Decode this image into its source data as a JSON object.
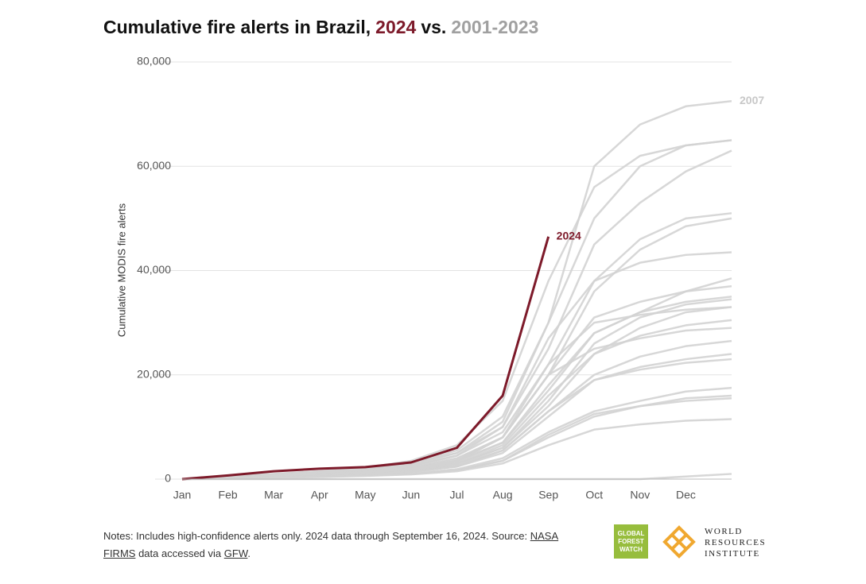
{
  "chart_data": {
    "type": "line",
    "title": {
      "text": "Cumulative fire alerts in Brazil,",
      "highlight": "2024",
      "connector": "vs.",
      "comparison": "2001-2023"
    },
    "y_label": "Cumulative MODIS fire alerts",
    "categories": [
      "Jan",
      "Feb",
      "Mar",
      "Apr",
      "May",
      "Jun",
      "Jul",
      "Aug",
      "Sep",
      "Oct",
      "Nov",
      "Dec",
      null
    ],
    "ylim": [
      0,
      80000
    ],
    "yticks": [
      0,
      {
        "value": 20000,
        "label": "20,000"
      },
      {
        "value": 40000,
        "label": "40,000"
      },
      {
        "value": 60000,
        "label": "60,000"
      },
      {
        "value": 80000,
        "label": "80,000"
      }
    ],
    "grid": true,
    "series": [
      {
        "name": "2007",
        "color": "#d3d3d3",
        "values": [
          0,
          400,
          900,
          1400,
          1900,
          2800,
          5000,
          11000,
          30000,
          60000,
          68000,
          71500,
          72500
        ]
      },
      {
        "color": "#d3d3d3",
        "values": [
          0,
          500,
          1000,
          1500,
          2200,
          3500,
          6500,
          15000,
          38000,
          56000,
          62000,
          64000,
          65000
        ]
      },
      {
        "color": "#d3d3d3",
        "values": [
          0,
          400,
          800,
          1300,
          1900,
          3000,
          5500,
          12000,
          30000,
          50000,
          60000,
          64000,
          65000
        ]
      },
      {
        "color": "#d3d3d3",
        "values": [
          0,
          500,
          1000,
          1500,
          2000,
          3000,
          5000,
          10000,
          25000,
          45000,
          53000,
          59000,
          63000
        ]
      },
      {
        "color": "#d3d3d3",
        "values": [
          0,
          300,
          700,
          1100,
          1600,
          2500,
          4500,
          9000,
          22000,
          38000,
          46000,
          50000,
          51000
        ]
      },
      {
        "color": "#d3d3d3",
        "values": [
          0,
          300,
          600,
          1000,
          1500,
          2300,
          4000,
          8000,
          20000,
          36000,
          44000,
          48500,
          50000
        ]
      },
      {
        "color": "#d3d3d3",
        "values": [
          0,
          400,
          800,
          1200,
          1700,
          2600,
          4500,
          10000,
          27000,
          38000,
          41500,
          43000,
          43500
        ]
      },
      {
        "color": "#d3d3d3",
        "values": [
          0,
          300,
          600,
          900,
          1300,
          2000,
          3500,
          7000,
          17000,
          28000,
          32000,
          36000,
          38500
        ]
      },
      {
        "color": "#d3d3d3",
        "values": [
          0,
          300,
          600,
          1000,
          1400,
          2200,
          3800,
          8000,
          20000,
          31000,
          34000,
          36000,
          37000
        ]
      },
      {
        "color": "#d3d3d3",
        "values": [
          0,
          300,
          600,
          900,
          1300,
          2000,
          3300,
          7000,
          18000,
          28000,
          32000,
          34000,
          35000
        ]
      },
      {
        "color": "#d3d3d3",
        "values": [
          0,
          300,
          500,
          800,
          1200,
          1800,
          3000,
          6000,
          15000,
          26000,
          31000,
          33500,
          34500
        ]
      },
      {
        "color": "#d3d3d3",
        "values": [
          0,
          300,
          600,
          900,
          1300,
          2000,
          3500,
          8000,
          22000,
          30000,
          31500,
          32500,
          33000
        ]
      },
      {
        "color": "#d3d3d3",
        "values": [
          0,
          200,
          400,
          700,
          1000,
          1600,
          2800,
          6000,
          14000,
          24000,
          29000,
          32000,
          33000
        ]
      },
      {
        "color": "#d3d3d3",
        "values": [
          0,
          200,
          500,
          800,
          1100,
          1700,
          3000,
          6500,
          16000,
          24000,
          27500,
          29500,
          30500
        ]
      },
      {
        "color": "#d3d3d3",
        "values": [
          0,
          300,
          600,
          900,
          1300,
          2000,
          3400,
          8000,
          20000,
          25000,
          27000,
          28500,
          29000
        ]
      },
      {
        "color": "#d3d3d3",
        "values": [
          0,
          200,
          400,
          700,
          1000,
          1500,
          2600,
          5500,
          13000,
          20000,
          23500,
          25500,
          26500
        ]
      },
      {
        "color": "#d3d3d3",
        "values": [
          0,
          200,
          400,
          600,
          900,
          1400,
          2400,
          5000,
          12000,
          19000,
          21500,
          23000,
          24000
        ]
      },
      {
        "color": "#d3d3d3",
        "values": [
          0,
          200,
          400,
          600,
          900,
          1400,
          2400,
          5500,
          13000,
          19000,
          21000,
          22300,
          23000
        ]
      },
      {
        "color": "#d3d3d3",
        "values": [
          0,
          150,
          300,
          500,
          700,
          1100,
          1900,
          4000,
          9000,
          13000,
          15000,
          16800,
          17500
        ]
      },
      {
        "color": "#d3d3d3",
        "values": [
          0,
          150,
          300,
          500,
          700,
          1000,
          1700,
          3500,
          8000,
          12000,
          14000,
          15500,
          16000
        ]
      },
      {
        "color": "#d3d3d3",
        "values": [
          0,
          150,
          300,
          450,
          650,
          1000,
          1700,
          3500,
          8500,
          12500,
          14000,
          15000,
          15500
        ]
      },
      {
        "color": "#d3d3d3",
        "values": [
          0,
          100,
          250,
          400,
          600,
          900,
          1500,
          3000,
          6500,
          9500,
          10500,
          11200,
          11500
        ]
      },
      {
        "color": "#d3d3d3",
        "values": [
          0,
          0,
          0,
          0,
          0,
          0,
          0,
          0,
          0,
          0,
          0,
          500,
          1000
        ]
      },
      {
        "name": "2024",
        "color": "#7d1a2a",
        "values": [
          0,
          700,
          1500,
          2000,
          2300,
          3200,
          6000,
          16000,
          46500,
          null,
          null,
          null,
          null
        ]
      }
    ]
  },
  "notes": {
    "lead": "Notes: Includes high-confidence alerts only. 2024 data through September 16, 2024. Source:",
    "link1": "NASA FIRMS",
    "mid": "data accessed via",
    "link2": "GFW",
    "end": "."
  },
  "logos": {
    "gfw": [
      "GLOBAL",
      "FOREST",
      "WATCH"
    ],
    "wri": [
      "WORLD",
      "RESOURCES",
      "INSTITUTE"
    ]
  }
}
